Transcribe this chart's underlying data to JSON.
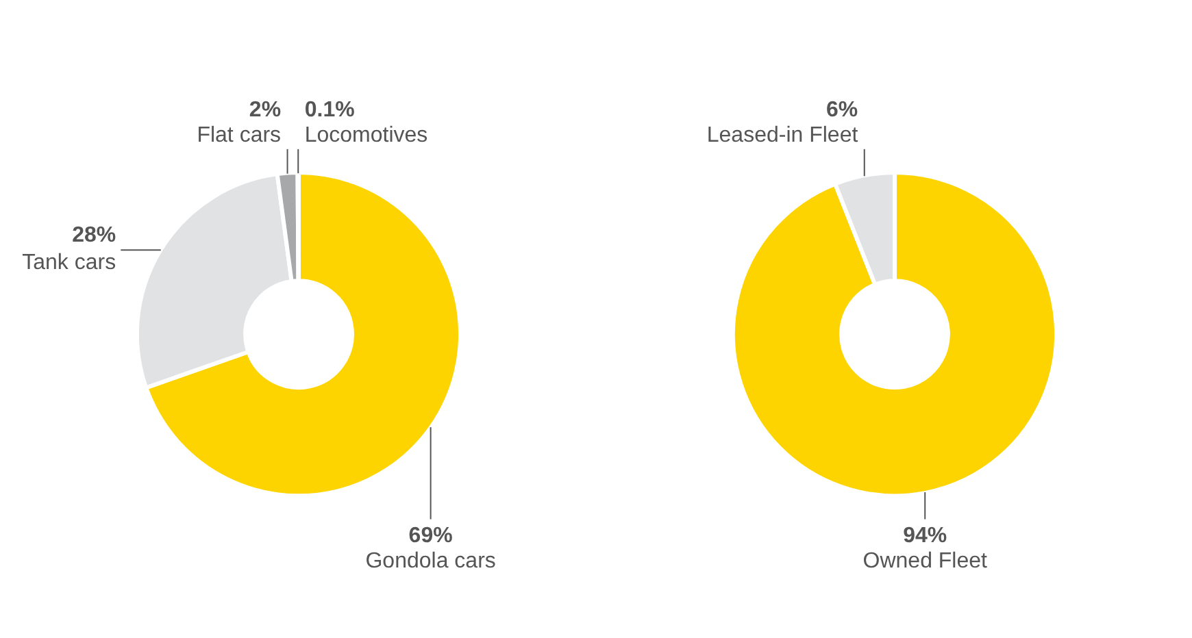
{
  "chart_data": [
    {
      "type": "donut",
      "categories": [
        "Gondola cars",
        "Tank cars",
        "Flat cars",
        "Locomotives"
      ],
      "values": [
        69,
        28,
        2,
        0.1
      ],
      "value_labels": [
        "69%",
        "28%",
        "2%",
        "0.1%"
      ],
      "colors": [
        "#fdd400",
        "#e1e2e4",
        "#a7a8aa",
        "#58595b"
      ]
    },
    {
      "type": "donut",
      "categories": [
        "Owned Fleet",
        "Leased-in Fleet"
      ],
      "values": [
        94,
        6
      ],
      "value_labels": [
        "94%",
        "6%"
      ],
      "colors": [
        "#fdd400",
        "#e1e2e4"
      ]
    }
  ]
}
